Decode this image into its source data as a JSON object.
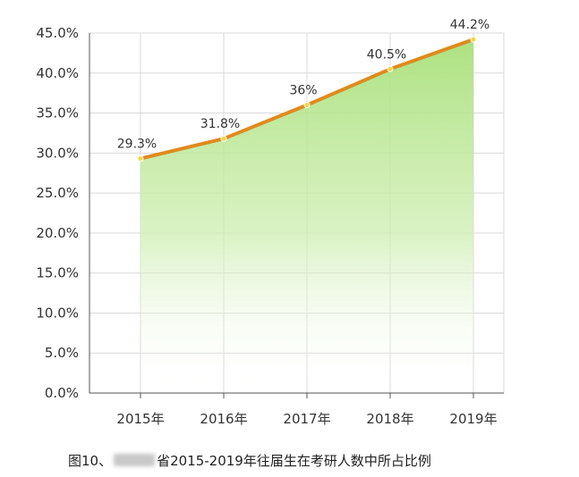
{
  "chart_data": {
    "type": "area",
    "categories": [
      "2015年",
      "2016年",
      "2017年",
      "2018年",
      "2019年"
    ],
    "values": [
      29.3,
      31.8,
      36,
      40.5,
      44.2
    ],
    "data_labels": [
      "29.3%",
      "31.8%",
      "36%",
      "40.5%",
      "44.2%"
    ],
    "y_ticks": [
      "0.0%",
      "5.0%",
      "10.0%",
      "15.0%",
      "20.0%",
      "25.0%",
      "30.0%",
      "35.0%",
      "40.0%",
      "45.0%"
    ],
    "ylim": [
      0,
      45
    ],
    "grid": true,
    "colors": {
      "line": "#e08a1e",
      "fill_top": "#a9e07a",
      "marker": "#ffd23f",
      "grid": "#d9d9d9",
      "axis": "#555555"
    }
  },
  "caption": {
    "prefix": "图10、",
    "suffix": "省2015-2019年往届生在考研人数中所占比例"
  }
}
